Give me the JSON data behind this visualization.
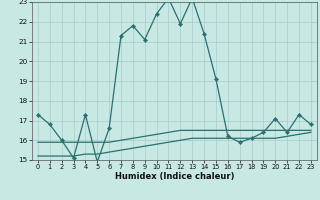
{
  "xlabel": "Humidex (Indice chaleur)",
  "xlim": [
    -0.5,
    23.5
  ],
  "ylim": [
    15,
    23
  ],
  "yticks": [
    15,
    16,
    17,
    18,
    19,
    20,
    21,
    22,
    23
  ],
  "xticks": [
    0,
    1,
    2,
    3,
    4,
    5,
    6,
    7,
    8,
    9,
    10,
    11,
    12,
    13,
    14,
    15,
    16,
    17,
    18,
    19,
    20,
    21,
    22,
    23
  ],
  "bg_color": "#c8e8e4",
  "grid_color": "#a8cccc",
  "line_color": "#2a7070",
  "line1_x": [
    0,
    1,
    2,
    3,
    4,
    5,
    6,
    7,
    8,
    9,
    10,
    11,
    12,
    13,
    14,
    15,
    16,
    17,
    18,
    19,
    20,
    21,
    22,
    23
  ],
  "line1_y": [
    17.3,
    16.8,
    16.0,
    15.1,
    17.3,
    14.9,
    16.6,
    21.3,
    21.8,
    21.1,
    22.4,
    23.2,
    21.9,
    23.2,
    21.4,
    19.1,
    16.2,
    15.9,
    16.1,
    16.4,
    17.1,
    16.4,
    17.3,
    16.8
  ],
  "line2_x": [
    0,
    1,
    2,
    3,
    4,
    5,
    6,
    7,
    8,
    9,
    10,
    11,
    12,
    13,
    14,
    15,
    16,
    17,
    18,
    19,
    20,
    21,
    22,
    23
  ],
  "line2_y": [
    15.9,
    15.9,
    15.9,
    15.9,
    15.9,
    15.9,
    15.9,
    16.0,
    16.1,
    16.2,
    16.3,
    16.4,
    16.5,
    16.5,
    16.5,
    16.5,
    16.5,
    16.5,
    16.5,
    16.5,
    16.5,
    16.5,
    16.5,
    16.5
  ],
  "line3_x": [
    0,
    1,
    2,
    3,
    4,
    5,
    6,
    7,
    8,
    9,
    10,
    11,
    12,
    13,
    14,
    15,
    16,
    17,
    18,
    19,
    20,
    21,
    22,
    23
  ],
  "line3_y": [
    15.2,
    15.2,
    15.2,
    15.2,
    15.3,
    15.3,
    15.4,
    15.5,
    15.6,
    15.7,
    15.8,
    15.9,
    16.0,
    16.1,
    16.1,
    16.1,
    16.1,
    16.1,
    16.1,
    16.1,
    16.1,
    16.2,
    16.3,
    16.4
  ]
}
